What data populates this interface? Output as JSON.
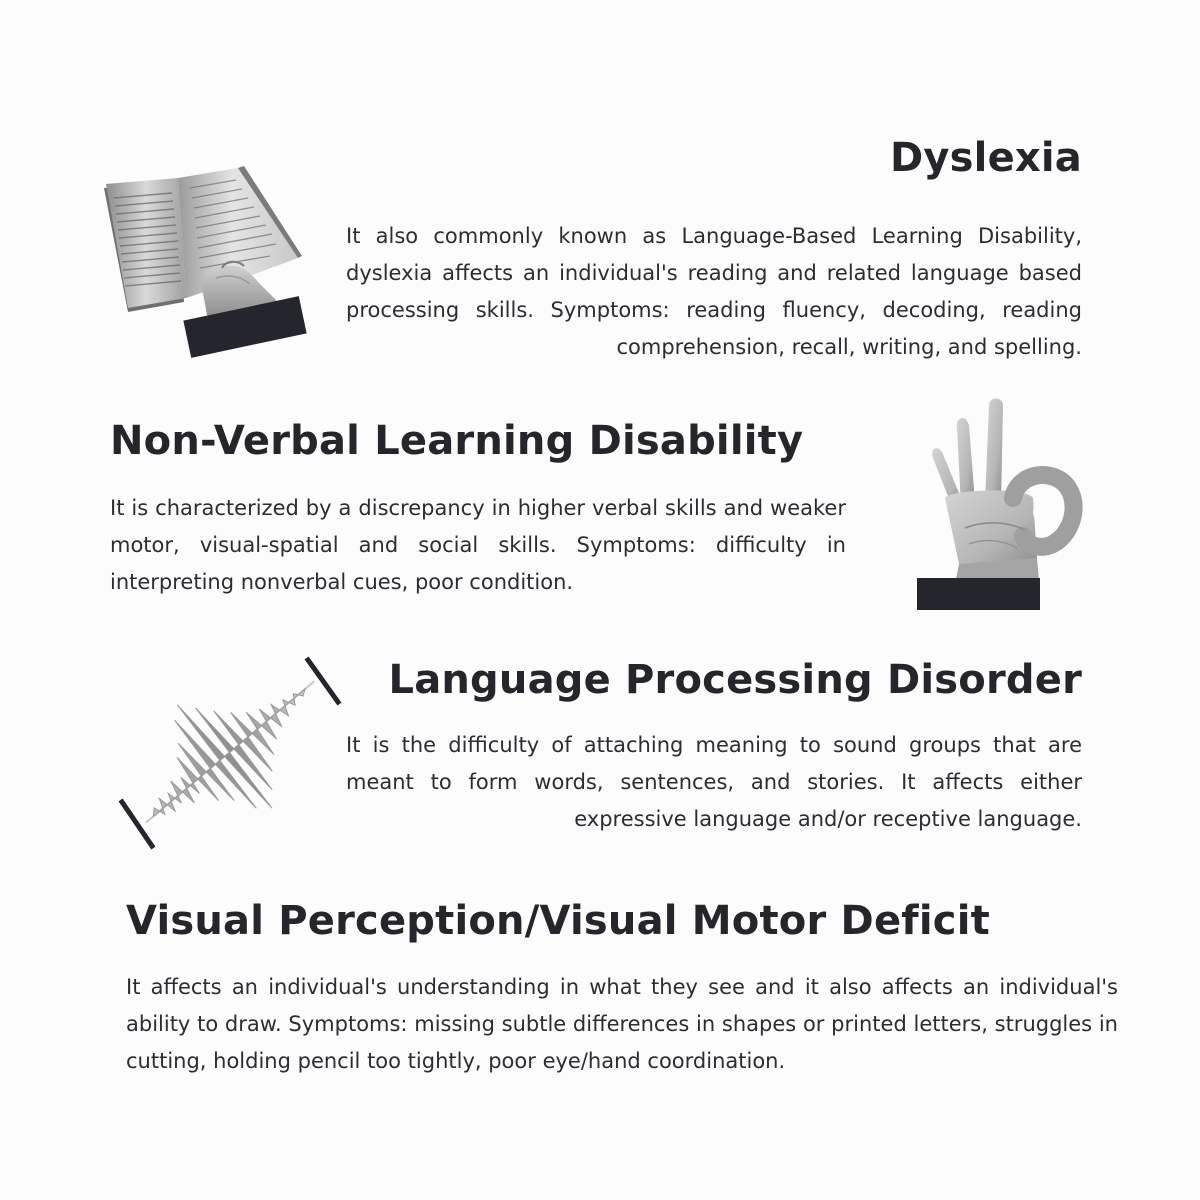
{
  "sections": [
    {
      "title": "Dyslexia",
      "body": "It also commonly known as Language-Based Learning Disability, dyslexia affects an individual's reading and related language based processing skills. Symptoms: reading fluency, decoding, reading comprehension, recall, writing, and spelling.",
      "illustration": "open-book-in-hand-icon"
    },
    {
      "title": "Non-Verbal Learning Disability",
      "body": "It is characterized by a discrepancy in higher verbal skills and weaker motor, visual-spatial and social skills. Symptoms: difficulty in interpreting nonverbal cues, poor condition.",
      "illustration": "ok-hand-gesture-icon"
    },
    {
      "title": "Language Processing Disorder",
      "body": "It is the difficulty of attaching meaning to sound groups that are meant to form words, sentences, and stories. It affects either expressive language and/or receptive language.",
      "illustration": "sound-wave-icon"
    },
    {
      "title": "Visual Perception/Visual Motor Deficit",
      "body": "It affects an individual's understanding in what they see and it also affects an individual's ability to draw. Symptoms: missing subtle differences in shapes or printed letters, struggles in cutting, holding pencil too tightly, poor eye/hand coordination."
    }
  ],
  "colors": {
    "background": "#fcfcfc",
    "text": "#25252c",
    "accent_bar": "#25262d"
  }
}
